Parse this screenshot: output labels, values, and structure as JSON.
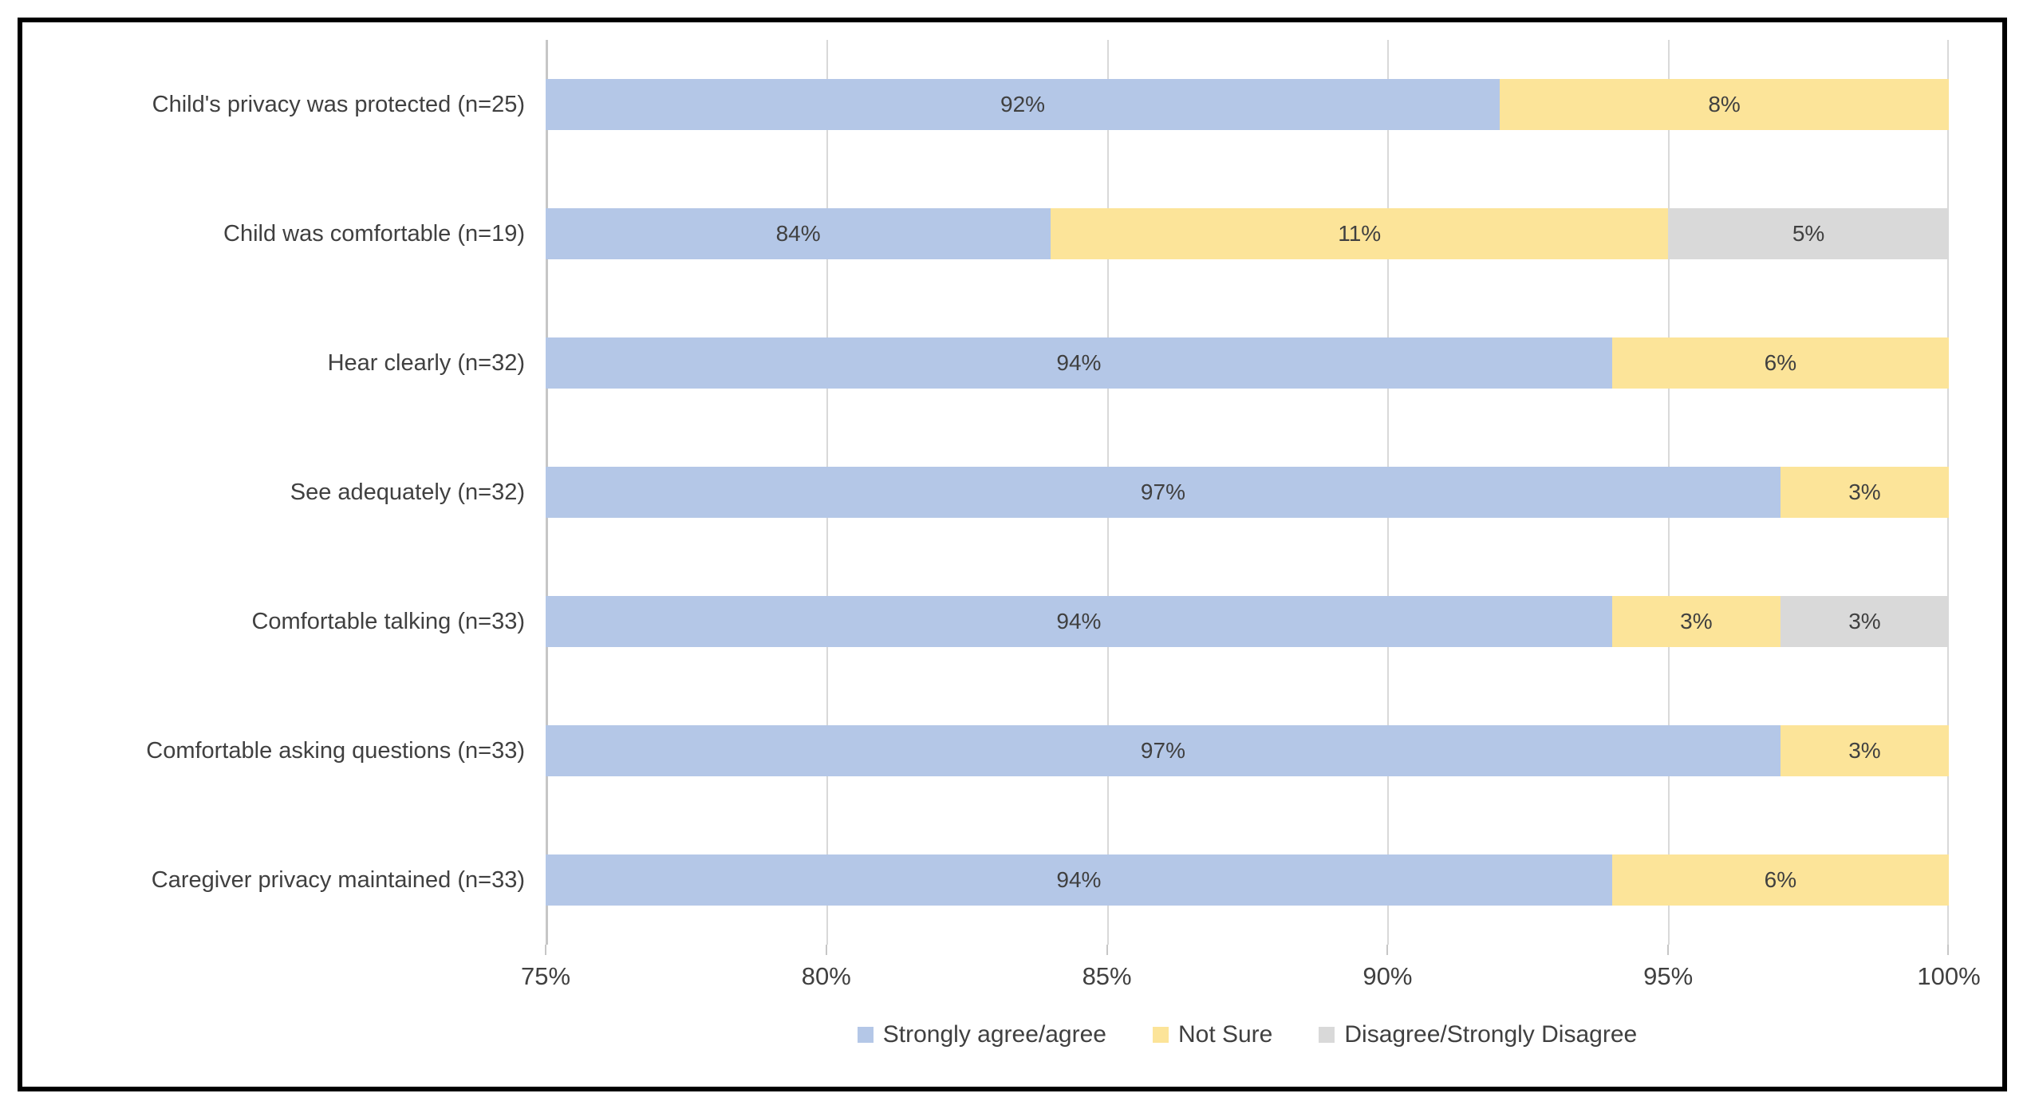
{
  "chart_data": {
    "type": "bar",
    "orientation": "horizontal",
    "stacked": true,
    "title": "",
    "xlabel": "",
    "ylabel": "",
    "xlim": [
      75,
      100
    ],
    "grid": true,
    "legend_position": "bottom",
    "categories": [
      "Child's privacy was protected (n=25)",
      "Child was comfortable (n=19)",
      "Hear clearly (n=32)",
      "See adequately (n=32)",
      "Comfortable talking (n=33)",
      "Comfortable asking questions (n=33)",
      "Caregiver privacy maintained (n=33)"
    ],
    "series": [
      {
        "name": "Strongly agree/agree",
        "color": "#b4c7e7",
        "values": [
          92,
          84,
          94,
          97,
          94,
          97,
          94
        ]
      },
      {
        "name": "Not Sure",
        "color": "#fce499",
        "values": [
          8,
          11,
          6,
          3,
          3,
          3,
          6
        ]
      },
      {
        "name": "Disagree/Strongly Disagree",
        "color": "#d9d9d9",
        "values": [
          0,
          5,
          0,
          0,
          3,
          0,
          0
        ]
      }
    ],
    "x_ticks": [
      "75%",
      "80%",
      "85%",
      "90%",
      "95%",
      "100%"
    ],
    "data_label_suffix": "%"
  },
  "colors": {
    "gridline": "#d9d9d9",
    "axis_line": "#c6c6c6",
    "text": "#404040",
    "frame_border": "#000000"
  }
}
